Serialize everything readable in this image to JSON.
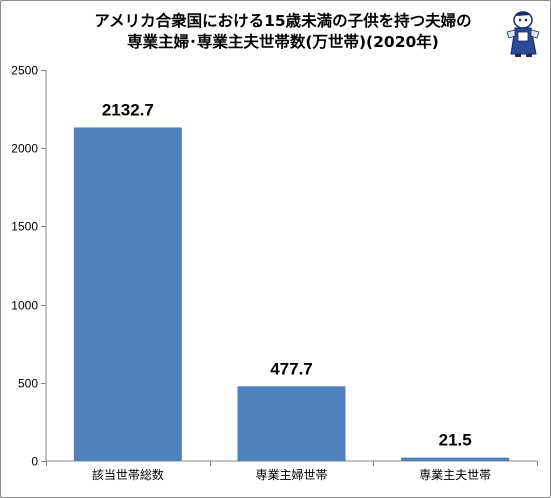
{
  "chart_data": {
    "type": "bar",
    "title_lines": [
      "アメリカ合衆国における15歳未満の子供を持つ夫婦の",
      "専業主婦･専業主夫世帯数(万世帯)(2020年)"
    ],
    "categories": [
      "該当世帯総数",
      "専業主婦世帯",
      "専業主夫世帯"
    ],
    "values": [
      2132.7,
      477.7,
      21.5
    ],
    "data_labels": [
      "2132.7",
      "477.7",
      "21.5"
    ],
    "ylim": [
      0,
      2500
    ],
    "yticks": [
      0,
      500,
      1000,
      1500,
      2000,
      2500
    ],
    "grid": false,
    "legend": "none",
    "xlabel": "",
    "ylabel": "",
    "colors": {
      "bar": "#4f81bd",
      "axis": "#888888"
    },
    "logo_icon": "mascot-illustration-icon"
  }
}
